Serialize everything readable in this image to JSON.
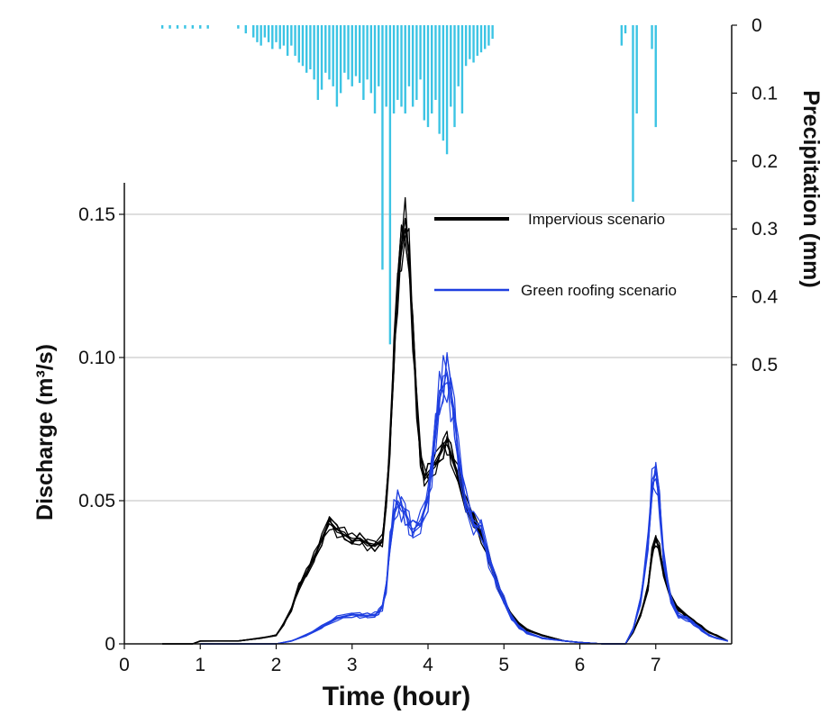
{
  "chart_data": {
    "type": "line",
    "title": "",
    "xlabel": "Time (hour)",
    "ylabel": "Discharge (m³/s)",
    "y2label": "Precipitation (mm)",
    "xlim": [
      0,
      8
    ],
    "ylim": [
      0,
      0.15
    ],
    "y2lim": [
      0,
      0.5
    ],
    "y2_inverted": true,
    "x_ticks": [
      "0",
      "1",
      "2",
      "3",
      "4",
      "5",
      "6",
      "7"
    ],
    "y_ticks": [
      "0",
      "0.05",
      "0.10",
      "0.15"
    ],
    "y2_ticks": [
      "0",
      "0.1",
      "0.2",
      "0.3",
      "0.4",
      "0.5"
    ],
    "grid": "horizontal",
    "legend_position": "top-right",
    "colors": {
      "impervious": "#000000",
      "green": "#1f3fe0",
      "precip": "#3cc4e4",
      "grid": "#bdbdbd"
    },
    "series": [
      {
        "name": "Impervious scenario",
        "color": "#000000",
        "x": [
          0.5,
          0.9,
          1.0,
          1.5,
          1.8,
          2.0,
          2.1,
          2.2,
          2.3,
          2.4,
          2.5,
          2.6,
          2.7,
          2.8,
          2.9,
          3.0,
          3.1,
          3.2,
          3.3,
          3.4,
          3.45,
          3.5,
          3.55,
          3.6,
          3.65,
          3.7,
          3.75,
          3.8,
          3.85,
          3.9,
          3.95,
          4.0,
          4.1,
          4.2,
          4.25,
          4.3,
          4.4,
          4.5,
          4.6,
          4.7,
          4.8,
          4.9,
          5.0,
          5.1,
          5.2,
          5.3,
          5.5,
          5.8,
          6.0,
          6.3,
          6.6,
          6.7,
          6.8,
          6.9,
          6.95,
          7.0,
          7.05,
          7.1,
          7.2,
          7.3,
          7.4,
          7.5,
          7.6,
          7.7,
          7.8,
          7.95
        ],
        "y": [
          0.0,
          0.0,
          0.001,
          0.001,
          0.002,
          0.003,
          0.007,
          0.012,
          0.02,
          0.025,
          0.03,
          0.036,
          0.043,
          0.04,
          0.038,
          0.036,
          0.037,
          0.035,
          0.034,
          0.036,
          0.05,
          0.07,
          0.1,
          0.125,
          0.14,
          0.145,
          0.135,
          0.11,
          0.085,
          0.065,
          0.058,
          0.06,
          0.063,
          0.068,
          0.071,
          0.067,
          0.058,
          0.048,
          0.044,
          0.038,
          0.03,
          0.022,
          0.015,
          0.01,
          0.007,
          0.005,
          0.003,
          0.001,
          0.0005,
          0.0,
          0.0,
          0.004,
          0.01,
          0.02,
          0.032,
          0.036,
          0.033,
          0.025,
          0.016,
          0.012,
          0.01,
          0.008,
          0.006,
          0.004,
          0.003,
          0.001
        ]
      },
      {
        "name": "Green roofing scenario",
        "color": "#1f3fe0",
        "x": [
          1.0,
          1.5,
          2.0,
          2.2,
          2.4,
          2.6,
          2.8,
          3.0,
          3.1,
          3.2,
          3.3,
          3.35,
          3.4,
          3.45,
          3.5,
          3.55,
          3.6,
          3.65,
          3.7,
          3.75,
          3.8,
          3.9,
          4.0,
          4.05,
          4.1,
          4.15,
          4.2,
          4.25,
          4.3,
          4.35,
          4.4,
          4.5,
          4.6,
          4.7,
          4.8,
          4.9,
          5.0,
          5.1,
          5.2,
          5.3,
          5.5,
          5.8,
          6.0,
          6.3,
          6.6,
          6.7,
          6.8,
          6.9,
          6.95,
          7.0,
          7.05,
          7.1,
          7.2,
          7.3,
          7.4,
          7.5,
          7.6,
          7.7,
          7.8,
          7.95
        ],
        "y": [
          0.0,
          0.0,
          0.0,
          0.001,
          0.003,
          0.006,
          0.009,
          0.01,
          0.01,
          0.01,
          0.01,
          0.011,
          0.013,
          0.02,
          0.035,
          0.045,
          0.05,
          0.048,
          0.045,
          0.042,
          0.04,
          0.042,
          0.05,
          0.062,
          0.075,
          0.085,
          0.09,
          0.095,
          0.088,
          0.078,
          0.065,
          0.05,
          0.042,
          0.04,
          0.03,
          0.022,
          0.015,
          0.009,
          0.006,
          0.004,
          0.002,
          0.001,
          0.0005,
          0.0,
          0.0,
          0.005,
          0.015,
          0.035,
          0.055,
          0.06,
          0.05,
          0.03,
          0.015,
          0.01,
          0.009,
          0.007,
          0.005,
          0.003,
          0.002,
          0.001
        ]
      },
      {
        "name": "Precipitation",
        "color": "#3cc4e4",
        "axis": "y2",
        "x": [
          0.5,
          0.6,
          0.7,
          0.8,
          0.9,
          1.0,
          1.1,
          1.5,
          1.6,
          1.7,
          1.75,
          1.8,
          1.85,
          1.9,
          1.95,
          2.0,
          2.05,
          2.1,
          2.15,
          2.2,
          2.25,
          2.3,
          2.35,
          2.4,
          2.45,
          2.5,
          2.55,
          2.6,
          2.65,
          2.7,
          2.75,
          2.8,
          2.85,
          2.9,
          2.95,
          3.0,
          3.05,
          3.1,
          3.15,
          3.2,
          3.25,
          3.3,
          3.35,
          3.4,
          3.45,
          3.5,
          3.55,
          3.6,
          3.65,
          3.7,
          3.75,
          3.8,
          3.85,
          3.9,
          3.95,
          4.0,
          4.05,
          4.1,
          4.15,
          4.2,
          4.25,
          4.3,
          4.35,
          4.4,
          4.45,
          4.5,
          4.55,
          4.6,
          4.65,
          4.7,
          4.75,
          4.8,
          4.85,
          6.55,
          6.6,
          6.7,
          6.75,
          6.95,
          7.0
        ],
        "y": [
          0.005,
          0.005,
          0.005,
          0.005,
          0.005,
          0.005,
          0.005,
          0.005,
          0.012,
          0.018,
          0.025,
          0.03,
          0.018,
          0.025,
          0.035,
          0.025,
          0.035,
          0.03,
          0.045,
          0.03,
          0.045,
          0.055,
          0.06,
          0.07,
          0.065,
          0.08,
          0.11,
          0.095,
          0.07,
          0.08,
          0.09,
          0.12,
          0.1,
          0.07,
          0.08,
          0.09,
          0.075,
          0.085,
          0.11,
          0.08,
          0.1,
          0.13,
          0.09,
          0.36,
          0.12,
          0.47,
          0.13,
          0.11,
          0.12,
          0.13,
          0.09,
          0.12,
          0.11,
          0.08,
          0.14,
          0.15,
          0.13,
          0.11,
          0.16,
          0.17,
          0.19,
          0.12,
          0.15,
          0.09,
          0.13,
          0.06,
          0.05,
          0.055,
          0.045,
          0.04,
          0.035,
          0.03,
          0.02,
          0.03,
          0.012,
          0.26,
          0.13,
          0.035,
          0.15
        ]
      }
    ]
  }
}
